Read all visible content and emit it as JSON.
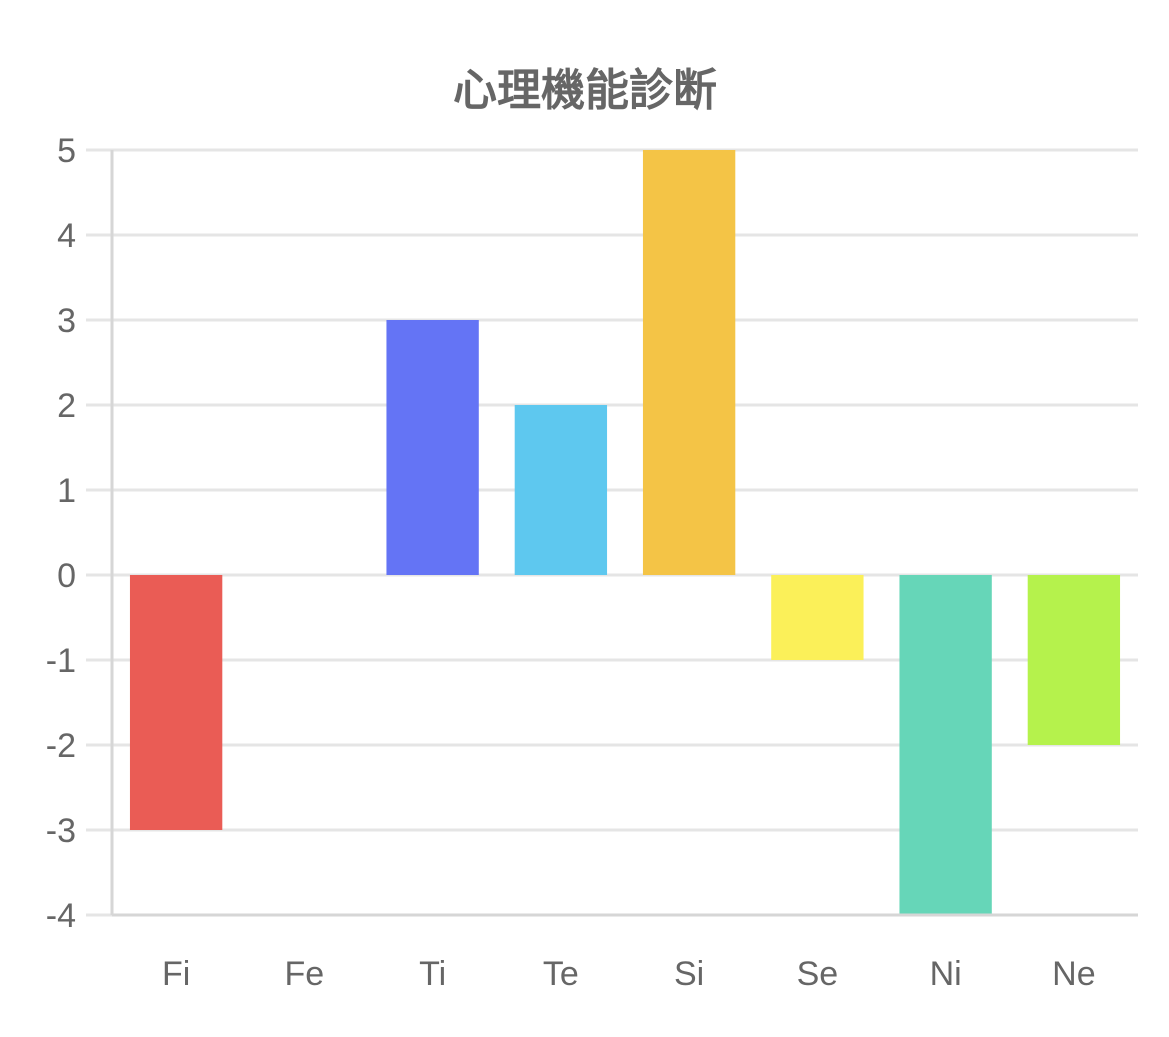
{
  "chart_data": {
    "type": "bar",
    "title": "心理機能診断",
    "categories": [
      "Fi",
      "Fe",
      "Ti",
      "Te",
      "Si",
      "Se",
      "Ni",
      "Ne"
    ],
    "values": [
      -3,
      0,
      3,
      2,
      5,
      -1,
      -4,
      -2
    ],
    "colors": [
      "#ea5c55",
      "#f0a040",
      "#6474f5",
      "#5ec8ef",
      "#f4c446",
      "#fbf059",
      "#66d6b8",
      "#b5f24c"
    ],
    "ylim": [
      -4,
      5
    ],
    "yticks": [
      5,
      4,
      3,
      2,
      1,
      0,
      -1,
      -2,
      -3,
      -4
    ],
    "xlabel": "",
    "ylabel": "",
    "grid": true,
    "legend": false
  }
}
